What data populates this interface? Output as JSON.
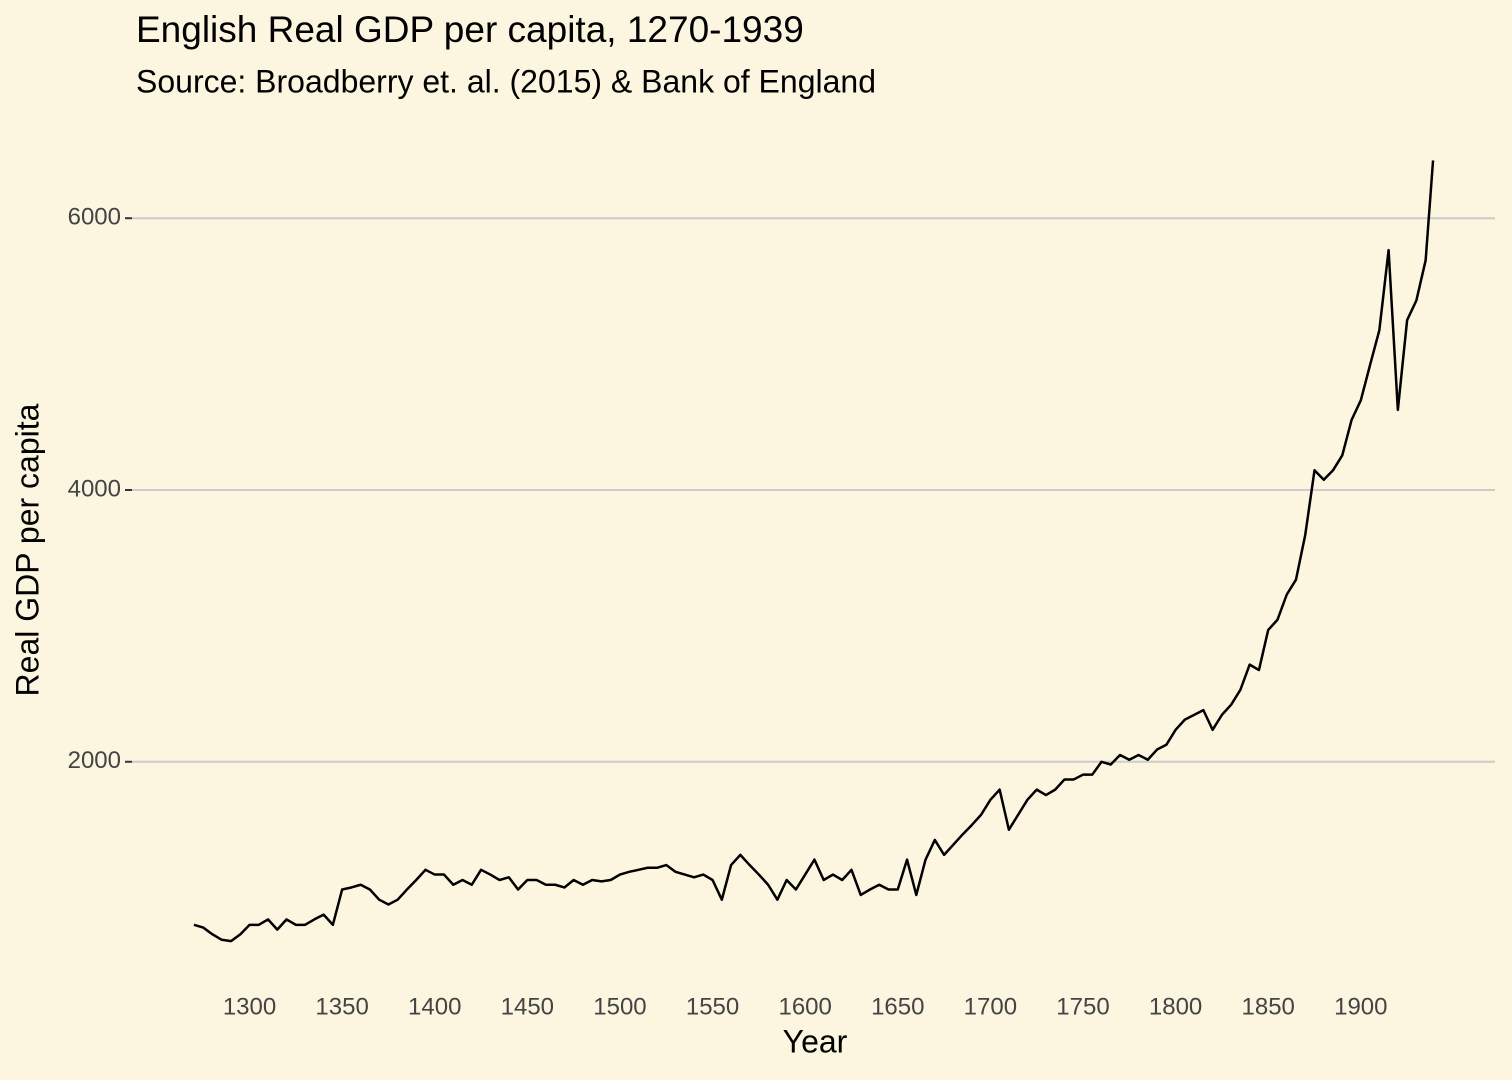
{
  "chart_data": {
    "type": "line",
    "title": "English Real GDP per capita, 1270-1939",
    "subtitle": "Source: Broadberry et. al. (2015) & Bank of England",
    "x_label": "Year",
    "y_label": "Real GDP per capita",
    "x": [
      1270,
      1275,
      1280,
      1285,
      1290,
      1295,
      1300,
      1305,
      1310,
      1315,
      1320,
      1325,
      1330,
      1335,
      1340,
      1345,
      1350,
      1355,
      1360,
      1365,
      1370,
      1375,
      1380,
      1385,
      1390,
      1395,
      1400,
      1405,
      1410,
      1415,
      1420,
      1425,
      1430,
      1435,
      1440,
      1445,
      1450,
      1455,
      1460,
      1465,
      1470,
      1475,
      1480,
      1485,
      1490,
      1495,
      1500,
      1505,
      1510,
      1515,
      1520,
      1525,
      1530,
      1535,
      1540,
      1545,
      1550,
      1555,
      1560,
      1565,
      1570,
      1575,
      1580,
      1585,
      1590,
      1595,
      1600,
      1605,
      1610,
      1615,
      1620,
      1625,
      1630,
      1635,
      1640,
      1645,
      1650,
      1655,
      1660,
      1665,
      1670,
      1675,
      1680,
      1685,
      1690,
      1695,
      1700,
      1705,
      1710,
      1715,
      1720,
      1725,
      1730,
      1735,
      1740,
      1745,
      1750,
      1755,
      1760,
      1765,
      1770,
      1775,
      1780,
      1785,
      1790,
      1795,
      1800,
      1805,
      1810,
      1815,
      1820,
      1825,
      1830,
      1835,
      1840,
      1845,
      1850,
      1855,
      1860,
      1865,
      1870,
      1875,
      1880,
      1885,
      1890,
      1895,
      1900,
      1905,
      1910,
      1915,
      1920,
      1925,
      1930,
      1935,
      1939
    ],
    "series": [
      {
        "name": "Real GDP per capita",
        "color": "#000000",
        "values": [
          800,
          780,
          730,
          690,
          680,
          730,
          800,
          800,
          840,
          765,
          840,
          800,
          800,
          840,
          875,
          800,
          1060,
          1075,
          1095,
          1060,
          985,
          950,
          985,
          1060,
          1130,
          1205,
          1170,
          1170,
          1095,
          1130,
          1095,
          1205,
          1170,
          1130,
          1150,
          1060,
          1130,
          1130,
          1095,
          1095,
          1075,
          1130,
          1095,
          1130,
          1120,
          1130,
          1170,
          1190,
          1205,
          1220,
          1220,
          1240,
          1190,
          1170,
          1150,
          1170,
          1130,
          985,
          1240,
          1315,
          1240,
          1170,
          1095,
          985,
          1130,
          1060,
          1170,
          1280,
          1130,
          1170,
          1130,
          1205,
          1020,
          1060,
          1095,
          1060,
          1060,
          1280,
          1020,
          1280,
          1425,
          1315,
          1390,
          1465,
          1535,
          1610,
          1720,
          1795,
          1500,
          1610,
          1720,
          1795,
          1755,
          1795,
          1870,
          1870,
          1905,
          1905,
          2000,
          1980,
          2050,
          2015,
          2050,
          2015,
          2090,
          2125,
          2235,
          2310,
          2345,
          2380,
          2235,
          2345,
          2420,
          2530,
          2715,
          2675,
          2970,
          3045,
          3230,
          3340,
          3670,
          4145,
          4075,
          4145,
          4255,
          4515,
          4660,
          4920,
          5175,
          5765,
          4590,
          5250,
          5395,
          5690,
          6425
        ]
      }
    ],
    "xlim": [
      1236.55,
      1972.45
    ],
    "ylim": [
      372,
      6708
    ],
    "xticks": [
      1300,
      1350,
      1400,
      1450,
      1500,
      1550,
      1600,
      1650,
      1700,
      1750,
      1800,
      1850,
      1900
    ],
    "yticks": [
      2000,
      4000,
      6000
    ],
    "grid": "y",
    "background": "#fcf5df"
  }
}
